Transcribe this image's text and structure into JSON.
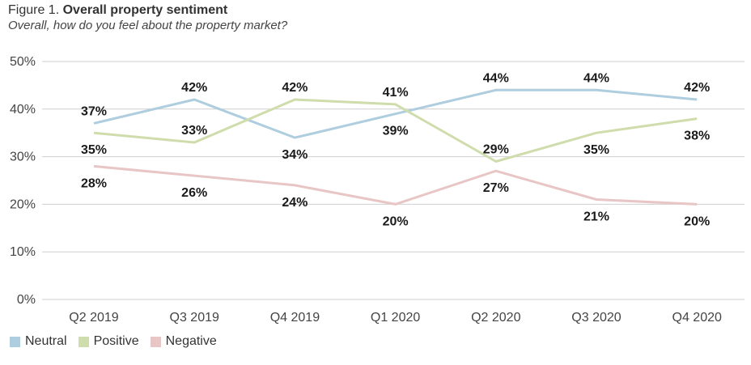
{
  "figure": {
    "lead": "Figure 1.",
    "title": "Overall property sentiment",
    "subtitle": "Overall, how do you feel about the property market?"
  },
  "colors": {
    "Neutral": "#aecdde",
    "Positive": "#cfdcab",
    "Negative": "#e8c6c6",
    "grid": "#cfcfcf",
    "axisText": "#444444"
  },
  "chart_data": {
    "type": "line",
    "categories": [
      "Q2 2019",
      "Q3 2019",
      "Q4 2019",
      "Q1 2020",
      "Q2 2020",
      "Q3 2020",
      "Q4 2020"
    ],
    "series": [
      {
        "name": "Neutral",
        "values": [
          37,
          42,
          34,
          39,
          44,
          44,
          42
        ],
        "labels": [
          "37%",
          "42%",
          "34%",
          "39%",
          "44%",
          "44%",
          "42%"
        ]
      },
      {
        "name": "Positive",
        "values": [
          35,
          33,
          42,
          41,
          29,
          35,
          38
        ],
        "labels": [
          "35%",
          "33%",
          "42%",
          "41%",
          "29%",
          "35%",
          "38%"
        ]
      },
      {
        "name": "Negative",
        "values": [
          28,
          26,
          24,
          20,
          27,
          21,
          20
        ],
        "labels": [
          "28%",
          "26%",
          "24%",
          "20%",
          "27%",
          "21%",
          "20%"
        ]
      }
    ],
    "yticks": [
      "0%",
      "10%",
      "20%",
      "30%",
      "40%",
      "50%"
    ],
    "ylim": [
      0,
      50
    ],
    "grid": true,
    "legend": "bottom-left"
  }
}
